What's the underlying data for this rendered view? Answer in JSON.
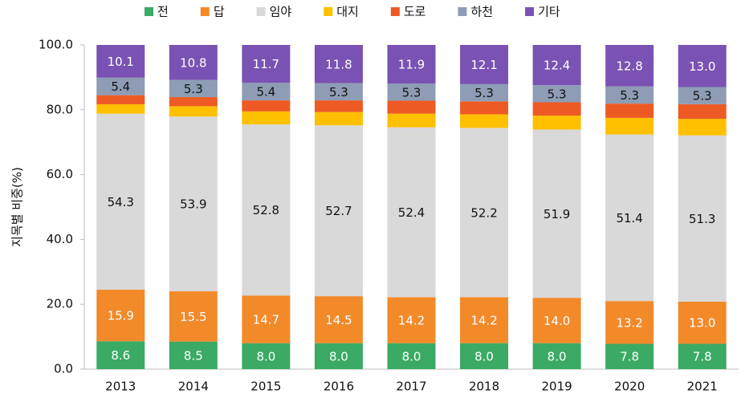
{
  "chart_data": {
    "type": "stacked_bar",
    "y_label": "지목별 비중(%)",
    "categories": [
      "2013",
      "2014",
      "2015",
      "2016",
      "2017",
      "2018",
      "2019",
      "2020",
      "2021"
    ],
    "ylim": [
      0,
      100
    ],
    "yticks": [
      {
        "value": 0,
        "label": "0.0"
      },
      {
        "value": 20,
        "label": "20.0"
      },
      {
        "value": 40,
        "label": "40.0"
      },
      {
        "value": 60,
        "label": "60.0"
      },
      {
        "value": 80,
        "label": "80.0"
      },
      {
        "value": 100,
        "label": "100.0"
      }
    ],
    "series": [
      {
        "name": "전",
        "color": "#3aaa64",
        "values": [
          8.6,
          8.5,
          8.0,
          8.0,
          8.0,
          8.0,
          8.0,
          7.8,
          7.8
        ],
        "value_labels": [
          "8.6",
          "8.5",
          "8.0",
          "8.0",
          "8.0",
          "8.0",
          "8.0",
          "7.8",
          "7.8"
        ]
      },
      {
        "name": "답",
        "color": "#f28a2a",
        "values": [
          15.9,
          15.5,
          14.7,
          14.5,
          14.2,
          14.2,
          14.0,
          13.2,
          13.0
        ],
        "value_labels": [
          "15.9",
          "15.5",
          "14.7",
          "14.5",
          "14.2",
          "14.2",
          "14.0",
          "13.2",
          "13.0"
        ]
      },
      {
        "name": "임야",
        "color": "#d9d9d9",
        "values": [
          54.3,
          53.9,
          52.8,
          52.7,
          52.4,
          52.2,
          51.9,
          51.4,
          51.3
        ],
        "value_labels": [
          "54.3",
          "53.9",
          "52.8",
          "52.7",
          "52.4",
          "52.2",
          "51.9",
          "51.4",
          "51.3"
        ]
      },
      {
        "name": "대지",
        "color": "#ffc000",
        "values": [
          2.9,
          3.2,
          4.0,
          4.1,
          4.2,
          4.2,
          4.3,
          5.1,
          5.1
        ]
      },
      {
        "name": "도로",
        "color": "#ee5a24",
        "values": [
          2.8,
          2.8,
          3.4,
          3.6,
          4.0,
          4.0,
          4.1,
          4.4,
          4.5
        ]
      },
      {
        "name": "하천",
        "color": "#8e9db5",
        "values": [
          5.4,
          5.3,
          5.4,
          5.3,
          5.3,
          5.3,
          5.3,
          5.3,
          5.3
        ],
        "value_labels": [
          "5.4",
          "5.3",
          "5.4",
          "5.3",
          "5.3",
          "5.3",
          "5.3",
          "5.3",
          "5.3"
        ]
      },
      {
        "name": "기타",
        "color": "#7a52b3",
        "values": [
          10.1,
          10.8,
          11.7,
          11.8,
          11.9,
          12.1,
          12.4,
          12.8,
          13.0
        ],
        "value_labels": [
          "10.1",
          "10.8",
          "11.7",
          "11.8",
          "11.9",
          "12.1",
          "12.4",
          "12.8",
          "13.0"
        ]
      }
    ]
  }
}
